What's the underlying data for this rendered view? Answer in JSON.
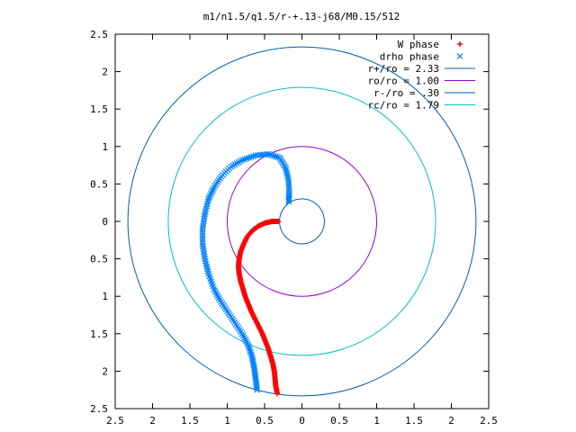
{
  "chart_data": {
    "type": "scatter",
    "title": "m1/n1.5/q1.5/r-+.13-j68/M0.15/512",
    "xlabel": "",
    "ylabel": "",
    "xlim": [
      -2.5,
      2.5
    ],
    "ylim": [
      -2.5,
      2.5
    ],
    "x_ticks": [
      -2.5,
      -2,
      -1.5,
      -1,
      -0.5,
      0,
      0.5,
      1,
      1.5,
      2,
      2.5
    ],
    "y_ticks": [
      -2.5,
      -2,
      -1.5,
      -1,
      -0.5,
      0,
      0.5,
      1,
      1.5,
      2,
      2.5
    ],
    "x_tick_labels": [
      "2.5",
      "2",
      "1.5",
      "1",
      "0.5",
      "0",
      "0.5",
      "1",
      "1.5",
      "2",
      "2.5"
    ],
    "y_tick_labels": [
      "2.5",
      "2",
      "1.5",
      "1",
      "0.5",
      "0",
      "0.5",
      "1",
      "1.5",
      "2",
      "2.5"
    ],
    "grid": false,
    "legend_position": "top-right",
    "series": [
      {
        "name": "W phase",
        "marker": "plus",
        "color": "#ff0000",
        "points": [
          [
            -0.33,
            -2.3
          ],
          [
            -0.35,
            -2.2
          ],
          [
            -0.36,
            -2.1
          ],
          [
            -0.37,
            -2.0
          ],
          [
            -0.39,
            -1.9
          ],
          [
            -0.42,
            -1.8
          ],
          [
            -0.45,
            -1.7
          ],
          [
            -0.49,
            -1.6
          ],
          [
            -0.53,
            -1.5
          ],
          [
            -0.58,
            -1.4
          ],
          [
            -0.63,
            -1.3
          ],
          [
            -0.68,
            -1.2
          ],
          [
            -0.72,
            -1.1
          ],
          [
            -0.76,
            -1.0
          ],
          [
            -0.79,
            -0.9
          ],
          [
            -0.82,
            -0.8
          ],
          [
            -0.84,
            -0.7
          ],
          [
            -0.85,
            -0.6
          ],
          [
            -0.84,
            -0.5
          ],
          [
            -0.82,
            -0.4
          ],
          [
            -0.78,
            -0.3
          ],
          [
            -0.73,
            -0.2
          ],
          [
            -0.66,
            -0.12
          ],
          [
            -0.58,
            -0.06
          ],
          [
            -0.49,
            -0.02
          ],
          [
            -0.4,
            0.0
          ],
          [
            -0.3,
            0.0
          ]
        ]
      },
      {
        "name": "drho phase",
        "marker": "cross",
        "color": "#0080ff",
        "points": [
          [
            -0.6,
            -2.25
          ],
          [
            -0.62,
            -2.1
          ],
          [
            -0.64,
            -1.95
          ],
          [
            -0.67,
            -1.8
          ],
          [
            -0.72,
            -1.65
          ],
          [
            -0.8,
            -1.5
          ],
          [
            -0.9,
            -1.35
          ],
          [
            -1.0,
            -1.2
          ],
          [
            -1.1,
            -1.05
          ],
          [
            -1.18,
            -0.9
          ],
          [
            -1.25,
            -0.7
          ],
          [
            -1.3,
            -0.5
          ],
          [
            -1.33,
            -0.3
          ],
          [
            -1.33,
            -0.1
          ],
          [
            -1.3,
            0.1
          ],
          [
            -1.25,
            0.3
          ],
          [
            -1.18,
            0.45
          ],
          [
            -1.08,
            0.6
          ],
          [
            -0.95,
            0.73
          ],
          [
            -0.8,
            0.82
          ],
          [
            -0.62,
            0.88
          ],
          [
            -0.45,
            0.9
          ],
          [
            -0.3,
            0.85
          ],
          [
            -0.22,
            0.72
          ],
          [
            -0.18,
            0.55
          ],
          [
            -0.17,
            0.38
          ],
          [
            -0.18,
            0.24
          ]
        ]
      }
    ],
    "circles": [
      {
        "name": "r+/ro = 2.33",
        "radius": 2.33,
        "color": "#0060ad"
      },
      {
        "name": "ro/ro = 1.00",
        "radius": 1.0,
        "color": "#9400d3"
      },
      {
        "name": "r-/ro = .30",
        "radius": 0.3,
        "color": "#0060ad"
      },
      {
        "name": "rc/ro = 1.79",
        "radius": 1.79,
        "color": "#00c0c0"
      }
    ]
  }
}
